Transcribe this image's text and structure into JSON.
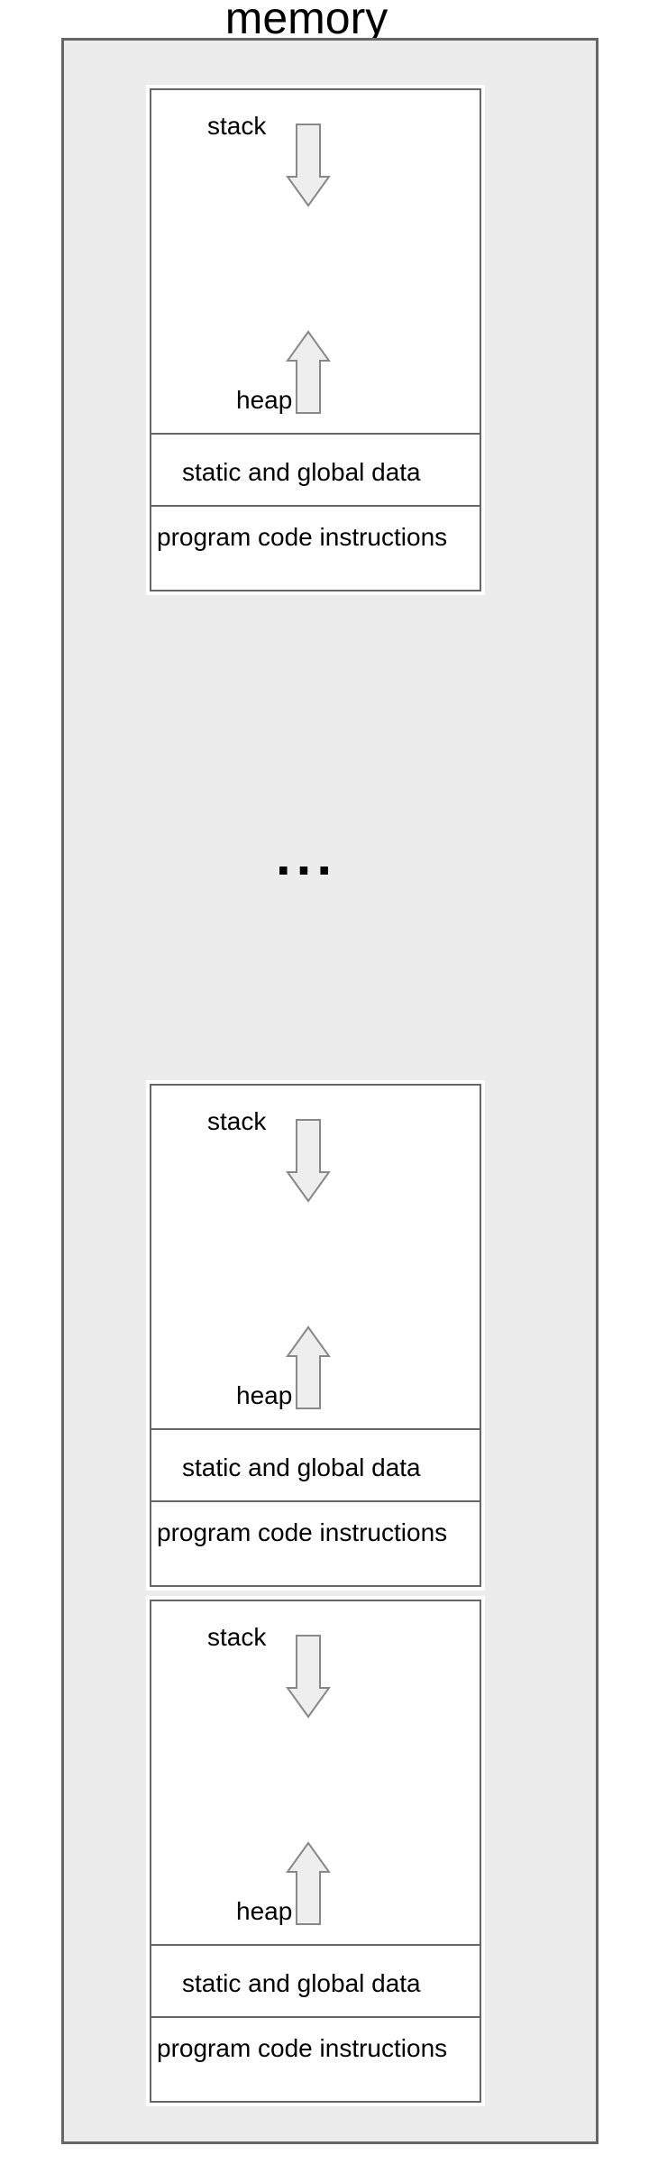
{
  "title": "memory",
  "ellipsis": "...",
  "segments": {
    "stack": "stack",
    "heap": "heap",
    "static": "static and global data",
    "code": "program code instructions"
  },
  "blocks": [
    {
      "id": "process-1"
    },
    {
      "id": "process-2"
    },
    {
      "id": "process-3"
    }
  ],
  "colors": {
    "background": "#ececec",
    "border": "#666666",
    "arrow_fill": "#eeeeee",
    "arrow_stroke": "#888888"
  }
}
